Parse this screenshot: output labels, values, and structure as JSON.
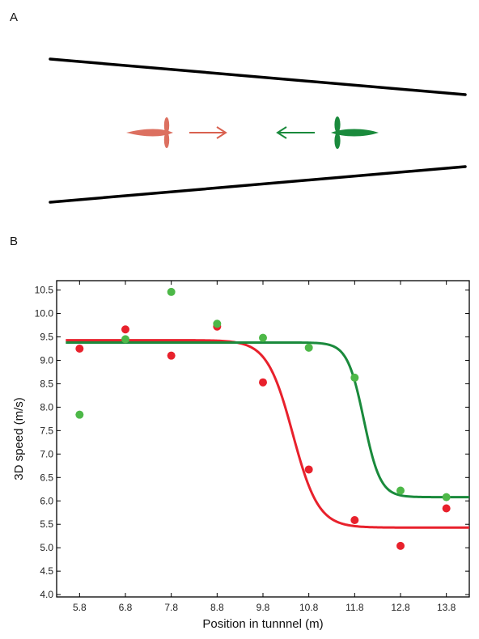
{
  "panel_a": {
    "label": "A",
    "colors": {
      "walls": "#000000",
      "left_plane": "#d9614f",
      "right_plane": "#1a8a3c"
    }
  },
  "panel_b": {
    "label": "B"
  },
  "chart_data": {
    "type": "scatter",
    "title": "",
    "xlabel": "Position in tunnnel (m)",
    "ylabel": "3D speed (m/s)",
    "xlim": [
      5.3,
      14.3
    ],
    "ylim": [
      3.95,
      10.7
    ],
    "x_ticks": [
      5.8,
      6.8,
      7.8,
      8.8,
      9.8,
      10.8,
      11.8,
      12.8,
      13.8
    ],
    "x_tick_labels": [
      "5.8",
      "6.8",
      "7.8",
      "8.8",
      "9.8",
      "10.8",
      "11.8",
      "12.8",
      "13.8"
    ],
    "y_ticks": [
      4.0,
      4.5,
      5.0,
      5.5,
      6.0,
      6.5,
      7.0,
      7.5,
      8.0,
      8.5,
      9.0,
      9.5,
      10.0,
      10.5
    ],
    "y_tick_labels": [
      "4.0",
      "4.5",
      "5.0",
      "5.5",
      "6.0",
      "6.5",
      "7.0",
      "7.5",
      "8.0",
      "8.5",
      "9.0",
      "9.5",
      "10.0",
      "10.5"
    ],
    "grid": false,
    "series": [
      {
        "color": "#e8212c",
        "point_color": "#e8212c",
        "x": [
          5.8,
          6.8,
          7.8,
          8.8,
          9.8,
          10.8,
          11.8,
          12.8,
          13.8
        ],
        "y": [
          9.25,
          9.66,
          9.1,
          9.72,
          8.53,
          6.67,
          5.59,
          5.04,
          5.84
        ],
        "fit": {
          "upper": 9.43,
          "lower": 5.43,
          "midpoint": 10.45,
          "width": 0.28
        }
      },
      {
        "color": "#1a8a3c",
        "point_color": "#4db848",
        "x": [
          5.8,
          6.8,
          7.8,
          8.8,
          9.8,
          10.8,
          11.8,
          12.8,
          13.8
        ],
        "y": [
          7.84,
          9.45,
          10.46,
          9.78,
          9.48,
          9.27,
          8.63,
          6.22,
          6.08
        ],
        "fit": {
          "upper": 9.38,
          "lower": 6.08,
          "midpoint": 12.0,
          "width": 0.18
        }
      }
    ]
  }
}
